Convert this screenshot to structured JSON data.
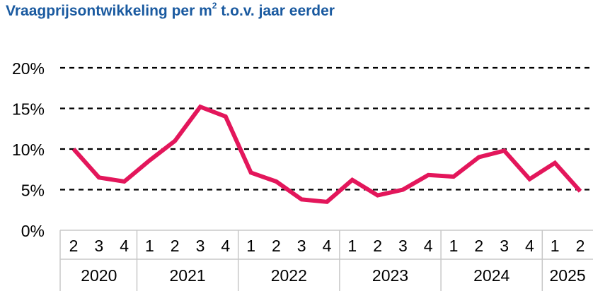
{
  "title": {
    "main": "Vraagprijsontwikkeling per m",
    "superscript": "2",
    "suffix": " t.o.v. jaar eerder"
  },
  "colors": {
    "title": "#1a5aa0",
    "line": "#e3165b",
    "grid": "#000000",
    "axis_box": "#c8c8c8"
  },
  "chart_data": {
    "type": "line",
    "title": "Vraagprijsontwikkeling per m2 t.o.v. jaar eerder",
    "xlabel": "",
    "ylabel": "",
    "ylim": [
      0,
      20
    ],
    "yticks": [
      "0%",
      "5%",
      "10%",
      "15%",
      "20%"
    ],
    "ytick_values": [
      0,
      5,
      10,
      15,
      20
    ],
    "grid": "dashed horizontal at 5%, 10%, 15%, 20%",
    "legend": "none",
    "categories": [
      "2020 Q2",
      "2020 Q3",
      "2020 Q4",
      "2021 Q1",
      "2021 Q2",
      "2021 Q3",
      "2021 Q4",
      "2022 Q1",
      "2022 Q2",
      "2022 Q3",
      "2022 Q4",
      "2023 Q1",
      "2023 Q2",
      "2023 Q3",
      "2023 Q4",
      "2024 Q1",
      "2024 Q2",
      "2024 Q3",
      "2024 Q4",
      "2025 Q1",
      "2025 Q2"
    ],
    "x_quarters": [
      "2",
      "3",
      "4",
      "1",
      "2",
      "3",
      "4",
      "1",
      "2",
      "3",
      "4",
      "1",
      "2",
      "3",
      "4",
      "1",
      "2",
      "3",
      "4",
      "1",
      "2"
    ],
    "x_years": [
      {
        "label": "2020",
        "count": 3
      },
      {
        "label": "2021",
        "count": 4
      },
      {
        "label": "2022",
        "count": 4
      },
      {
        "label": "2023",
        "count": 4
      },
      {
        "label": "2024",
        "count": 4
      },
      {
        "label": "2025",
        "count": 2
      }
    ],
    "series": [
      {
        "values": [
          10.0,
          6.5,
          6.0,
          8.6,
          11.0,
          15.2,
          14.0,
          7.1,
          6.0,
          3.8,
          3.5,
          6.2,
          4.3,
          5.0,
          6.8,
          6.6,
          9.0,
          9.8,
          6.3,
          8.3,
          4.8
        ]
      }
    ]
  }
}
